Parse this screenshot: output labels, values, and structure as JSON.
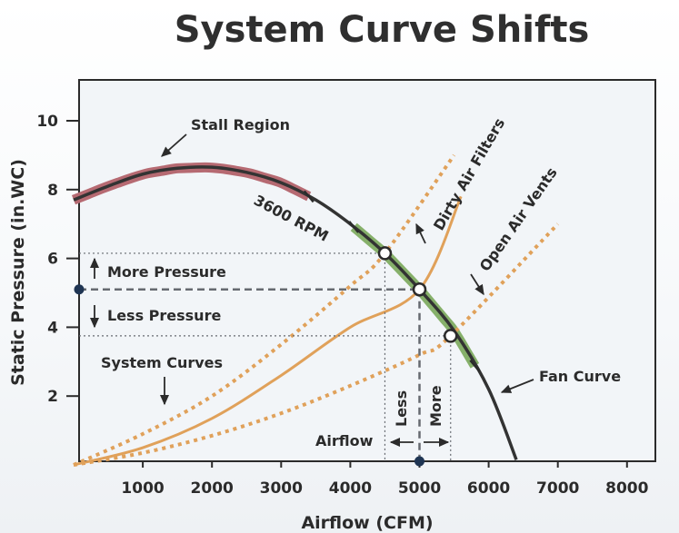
{
  "chart_data": {
    "type": "line",
    "title": "System Curve Shifts",
    "xlabel": "Airflow (CFM)",
    "ylabel": "Static Pressure (in.WC)",
    "xlim": [
      0,
      8500
    ],
    "ylim": [
      0,
      11
    ],
    "x_ticks": [
      1000,
      2000,
      3000,
      4000,
      5000,
      6000,
      7000,
      8000
    ],
    "y_ticks": [
      2,
      4,
      6,
      8,
      10
    ],
    "grid": false,
    "series": [
      {
        "name": "Fan Curve",
        "style": "solid",
        "color": "#333333",
        "x": [
          0,
          500,
          1000,
          1500,
          2000,
          2500,
          3000,
          3500,
          4000,
          4500,
          5000,
          5500,
          6000,
          6400
        ],
        "y": [
          7.7,
          8.1,
          8.45,
          8.62,
          8.65,
          8.5,
          8.2,
          7.7,
          7.0,
          6.15,
          5.1,
          3.9,
          2.2,
          0.15
        ]
      },
      {
        "name": "System Curves",
        "style": "solid",
        "color": "#e0a15a",
        "x": [
          0,
          1000,
          2000,
          3000,
          4000,
          5000,
          5600
        ],
        "y": [
          0.0,
          0.5,
          1.35,
          2.6,
          4.0,
          5.1,
          7.8
        ]
      },
      {
        "name": "Dirty Air Filters",
        "style": "dotted",
        "color": "#e0a15a",
        "x": [
          0,
          1000,
          2000,
          3000,
          4000,
          4500,
          5500
        ],
        "y": [
          0.0,
          0.9,
          2.0,
          3.5,
          5.2,
          6.15,
          9.0
        ]
      },
      {
        "name": "Open Air Vents",
        "style": "dotted",
        "color": "#e0a15a",
        "x": [
          0,
          1000,
          2000,
          3000,
          4000,
          5000,
          5450,
          7000
        ],
        "y": [
          0.0,
          0.35,
          0.85,
          1.5,
          2.3,
          3.2,
          3.75,
          7.0
        ]
      }
    ],
    "operating_points": [
      {
        "x": 4500,
        "y": 6.15
      },
      {
        "x": 5000,
        "y": 5.1
      },
      {
        "x": 5450,
        "y": 3.75
      }
    ],
    "stall_region": {
      "x_start": 0,
      "x_end": 3400,
      "color": "#b66a72"
    },
    "operating_range": {
      "x_start": 4050,
      "x_end": 5800,
      "color": "#86b06a"
    },
    "annotations": {
      "stall_region": "Stall Region",
      "rpm": "3600 RPM",
      "dirty_air_filters": "Dirty Air Filters",
      "open_air_vents": "Open Air Vents",
      "more_pressure": "More Pressure",
      "less_pressure": "Less Pressure",
      "system_curves": "System Curves",
      "fan_curve": "Fan Curve",
      "airflow": "Airflow",
      "less": "Less",
      "more": "More"
    },
    "reference_marker": {
      "x": 5000,
      "y": 5.1,
      "color": "#1f3553"
    }
  }
}
